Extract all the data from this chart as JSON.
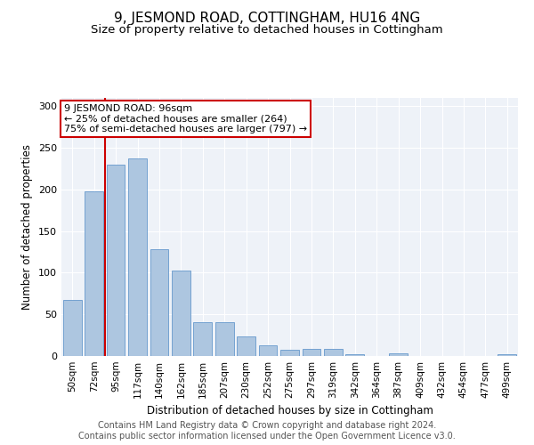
{
  "title": "9, JESMOND ROAD, COTTINGHAM, HU16 4NG",
  "subtitle": "Size of property relative to detached houses in Cottingham",
  "xlabel": "Distribution of detached houses by size in Cottingham",
  "ylabel": "Number of detached properties",
  "categories": [
    "50sqm",
    "72sqm",
    "95sqm",
    "117sqm",
    "140sqm",
    "162sqm",
    "185sqm",
    "207sqm",
    "230sqm",
    "252sqm",
    "275sqm",
    "297sqm",
    "319sqm",
    "342sqm",
    "364sqm",
    "387sqm",
    "409sqm",
    "432sqm",
    "454sqm",
    "477sqm",
    "499sqm"
  ],
  "values": [
    67,
    198,
    230,
    237,
    128,
    103,
    41,
    41,
    23,
    13,
    8,
    9,
    9,
    2,
    0,
    3,
    0,
    0,
    0,
    0,
    2
  ],
  "bar_color": "#adc6e0",
  "bar_edge_color": "#6699cc",
  "vline_color": "#cc0000",
  "annotation_text": "9 JESMOND ROAD: 96sqm\n← 25% of detached houses are smaller (264)\n75% of semi-detached houses are larger (797) →",
  "annotation_box_color": "#ffffff",
  "annotation_box_edge": "#cc0000",
  "ylim": [
    0,
    310
  ],
  "yticks": [
    0,
    50,
    100,
    150,
    200,
    250,
    300
  ],
  "background_color": "#eef2f8",
  "footer_text": "Contains HM Land Registry data © Crown copyright and database right 2024.\nContains public sector information licensed under the Open Government Licence v3.0.",
  "title_fontsize": 11,
  "subtitle_fontsize": 9.5,
  "xlabel_fontsize": 8.5,
  "ylabel_fontsize": 8.5,
  "footer_fontsize": 7,
  "tick_fontsize": 7.5,
  "ytick_fontsize": 8
}
